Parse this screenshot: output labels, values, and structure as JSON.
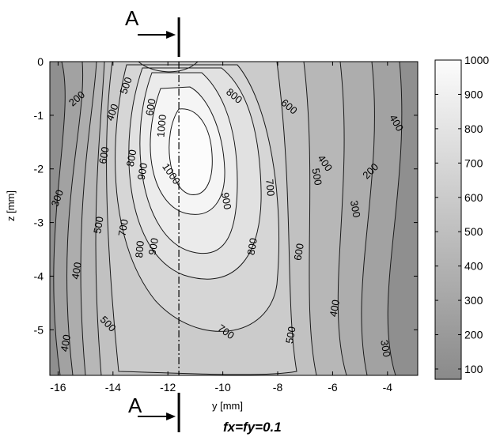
{
  "chart_data": {
    "type": "contour",
    "title": "",
    "subtitle": "fx=fy=0.1",
    "xlabel": "y [mm]",
    "ylabel": "z [mm]",
    "xlim": [
      -16.3,
      -2.9
    ],
    "ylim": [
      -5.85,
      0
    ],
    "xticks": [
      "-16",
      "-14",
      "-12",
      "-10",
      "-8",
      "-6",
      "-4"
    ],
    "yticks": [
      "0",
      "-1",
      "-2",
      "-3",
      "-4",
      "-5"
    ],
    "colorbar": {
      "min": 70,
      "max": 1000,
      "ticks": [
        "1000",
        "900",
        "800",
        "700",
        "600",
        "500",
        "400",
        "300",
        "200",
        "100"
      ]
    },
    "section_marker": {
      "label": "A",
      "y": -11.6
    },
    "peak": {
      "y": -11.2,
      "z": -1.7,
      "value": 1080
    },
    "contour_labels": [
      {
        "text": "200",
        "y": -15.3,
        "z": -0.7,
        "rot": -40
      },
      {
        "text": "500",
        "y": -13.5,
        "z": -0.45,
        "rot": -70
      },
      {
        "text": "400",
        "y": -14.0,
        "z": -0.95,
        "rot": -70
      },
      {
        "text": "600",
        "y": -12.6,
        "z": -0.85,
        "rot": -80
      },
      {
        "text": "800",
        "y": -9.6,
        "z": -0.65,
        "rot": 40
      },
      {
        "text": "600",
        "y": -7.6,
        "z": -0.85,
        "rot": 40
      },
      {
        "text": "400",
        "y": -3.7,
        "z": -1.15,
        "rot": 60
      },
      {
        "text": "1000",
        "y": -12.2,
        "z": -1.2,
        "rot": -85
      },
      {
        "text": "600",
        "y": -14.3,
        "z": -1.75,
        "rot": -80
      },
      {
        "text": "800",
        "y": -13.3,
        "z": -1.8,
        "rot": -80
      },
      {
        "text": "900",
        "y": -12.9,
        "z": -2.05,
        "rot": -80
      },
      {
        "text": "1000",
        "y": -11.9,
        "z": -2.1,
        "rot": 55
      },
      {
        "text": "400",
        "y": -6.3,
        "z": -1.9,
        "rot": 55
      },
      {
        "text": "500",
        "y": -6.6,
        "z": -2.15,
        "rot": 80
      },
      {
        "text": "200",
        "y": -4.6,
        "z": -2.05,
        "rot": -45
      },
      {
        "text": "300",
        "y": -16.0,
        "z": -2.55,
        "rot": -70
      },
      {
        "text": "900",
        "y": -9.9,
        "z": -2.6,
        "rot": 80
      },
      {
        "text": "700",
        "y": -8.3,
        "z": -2.35,
        "rot": 85
      },
      {
        "text": "300",
        "y": -5.2,
        "z": -2.75,
        "rot": 80
      },
      {
        "text": "500",
        "y": -14.5,
        "z": -3.05,
        "rot": -80
      },
      {
        "text": "700",
        "y": -13.6,
        "z": -3.1,
        "rot": -80
      },
      {
        "text": "800",
        "y": -13.0,
        "z": -3.5,
        "rot": -85
      },
      {
        "text": "900",
        "y": -12.5,
        "z": -3.45,
        "rot": -80
      },
      {
        "text": "800",
        "y": -8.9,
        "z": -3.45,
        "rot": -80
      },
      {
        "text": "600",
        "y": -7.2,
        "z": -3.55,
        "rot": -80
      },
      {
        "text": "400",
        "y": -15.3,
        "z": -3.9,
        "rot": -80
      },
      {
        "text": "400",
        "y": -5.9,
        "z": -4.6,
        "rot": -80
      },
      {
        "text": "500",
        "y": -14.2,
        "z": -4.9,
        "rot": 45
      },
      {
        "text": "500",
        "y": -7.5,
        "z": -5.1,
        "rot": -80
      },
      {
        "text": "400",
        "y": -15.7,
        "z": -5.25,
        "rot": -80
      },
      {
        "text": "700",
        "y": -9.9,
        "z": -5.05,
        "rot": 35
      },
      {
        "text": "300",
        "y": -4.1,
        "z": -5.35,
        "rot": 80
      }
    ]
  }
}
